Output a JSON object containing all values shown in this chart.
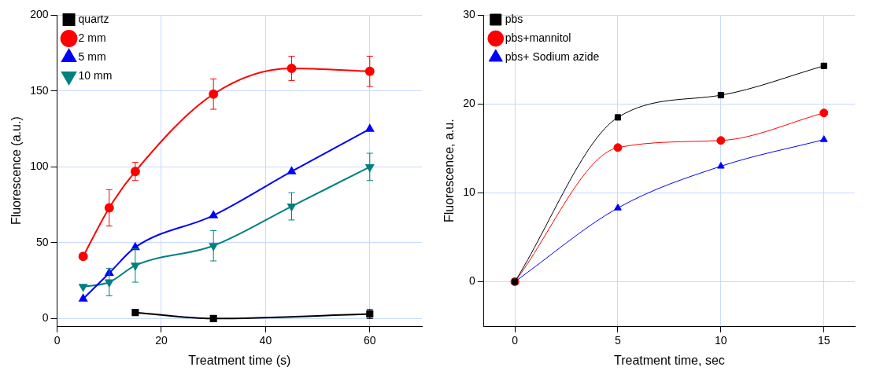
{
  "chart_data": [
    {
      "type": "line",
      "xlabel": "Treatment time (s)",
      "ylabel": "Fluorescence (a.u.)",
      "xlim": [
        0,
        70
      ],
      "xticks": [
        0,
        20,
        40,
        60
      ],
      "ylim": [
        -5,
        200
      ],
      "yticks": [
        0,
        50,
        100,
        150,
        200
      ],
      "grid": true,
      "legend": "top left",
      "line_style": "solid",
      "series": [
        {
          "name": "quartz",
          "color": "#000000",
          "marker": "square",
          "x": [
            15,
            30,
            60
          ],
          "values": [
            4,
            0,
            3
          ],
          "errors": [
            null,
            null,
            3
          ]
        },
        {
          "name": "2 mm",
          "color": "#ff0000",
          "marker": "circle",
          "x": [
            5,
            10,
            15,
            30,
            45,
            60
          ],
          "values": [
            41,
            73,
            97,
            148,
            165,
            163
          ],
          "errors": [
            null,
            12,
            6,
            10,
            8,
            10
          ]
        },
        {
          "name": "5 mm",
          "color": "#0000ff",
          "marker": "triangle",
          "x": [
            5,
            10,
            15,
            30,
            45,
            60
          ],
          "values": [
            13,
            30,
            47,
            68,
            97,
            125
          ]
        },
        {
          "name": "10 mm",
          "color": "#008080",
          "marker": "triangle-down",
          "x": [
            5,
            10,
            15,
            30,
            45,
            60
          ],
          "values": [
            21,
            24,
            35,
            48,
            74,
            100
          ],
          "errors": [
            null,
            9,
            11,
            10,
            9,
            9
          ]
        }
      ]
    },
    {
      "type": "line",
      "xlabel": "Treatment time, sec",
      "ylabel": "Fluorescence, a.u.",
      "xlim": [
        -1.5,
        16.5
      ],
      "xticks": [
        0,
        5,
        10,
        15
      ],
      "ylim": [
        -5,
        30
      ],
      "yticks": [
        0,
        10,
        20,
        30
      ],
      "grid": true,
      "legend": "top left",
      "line_style": "solid",
      "series": [
        {
          "name": "pbs",
          "color": "#000000",
          "marker": "square",
          "x": [
            0,
            5,
            10,
            15
          ],
          "values": [
            0,
            18.5,
            21,
            24.3
          ]
        },
        {
          "name": "pbs+mannitol",
          "color": "#ff0000",
          "marker": "circle",
          "x": [
            0,
            5,
            10,
            15
          ],
          "values": [
            0,
            15.1,
            15.9,
            19
          ]
        },
        {
          "name": "pbs+ Sodium azide",
          "color": "#0000ff",
          "marker": "triangle",
          "x": [
            0,
            5,
            10,
            15
          ],
          "values": [
            0,
            8.3,
            13,
            16
          ]
        }
      ]
    }
  ]
}
